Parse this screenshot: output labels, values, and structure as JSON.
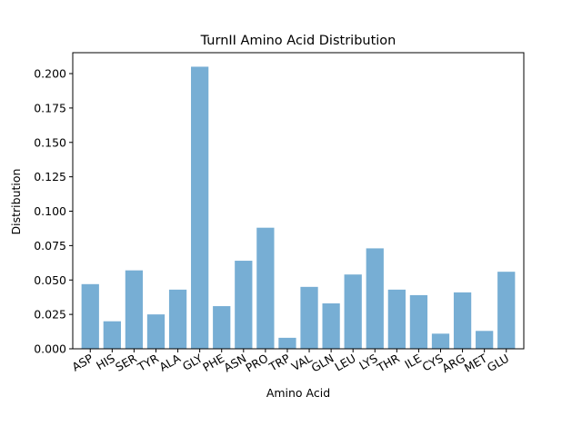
{
  "chart_data": {
    "type": "bar",
    "title": "TurnII Amino Acid Distribution",
    "xlabel": "Amino Acid",
    "ylabel": "Distribution",
    "categories": [
      "ASP",
      "HIS",
      "SER",
      "TYR",
      "ALA",
      "GLY",
      "PHE",
      "ASN",
      "PRO",
      "TRP",
      "VAL",
      "GLN",
      "LEU",
      "LYS",
      "THR",
      "ILE",
      "CYS",
      "ARG",
      "MET",
      "GLU"
    ],
    "values": [
      0.047,
      0.02,
      0.057,
      0.025,
      0.043,
      0.205,
      0.031,
      0.064,
      0.088,
      0.008,
      0.045,
      0.033,
      0.054,
      0.073,
      0.043,
      0.039,
      0.011,
      0.041,
      0.013,
      0.056
    ],
    "ylim": [
      0,
      0.2152
    ],
    "yticks": [
      0.0,
      0.025,
      0.05,
      0.075,
      0.1,
      0.125,
      0.15,
      0.175,
      0.2
    ],
    "ytick_labels": [
      "0.000",
      "0.025",
      "0.050",
      "0.075",
      "0.100",
      "0.125",
      "0.150",
      "0.175",
      "0.200"
    ],
    "bar_color": "#77aed4",
    "grid": false,
    "legend": "none"
  }
}
